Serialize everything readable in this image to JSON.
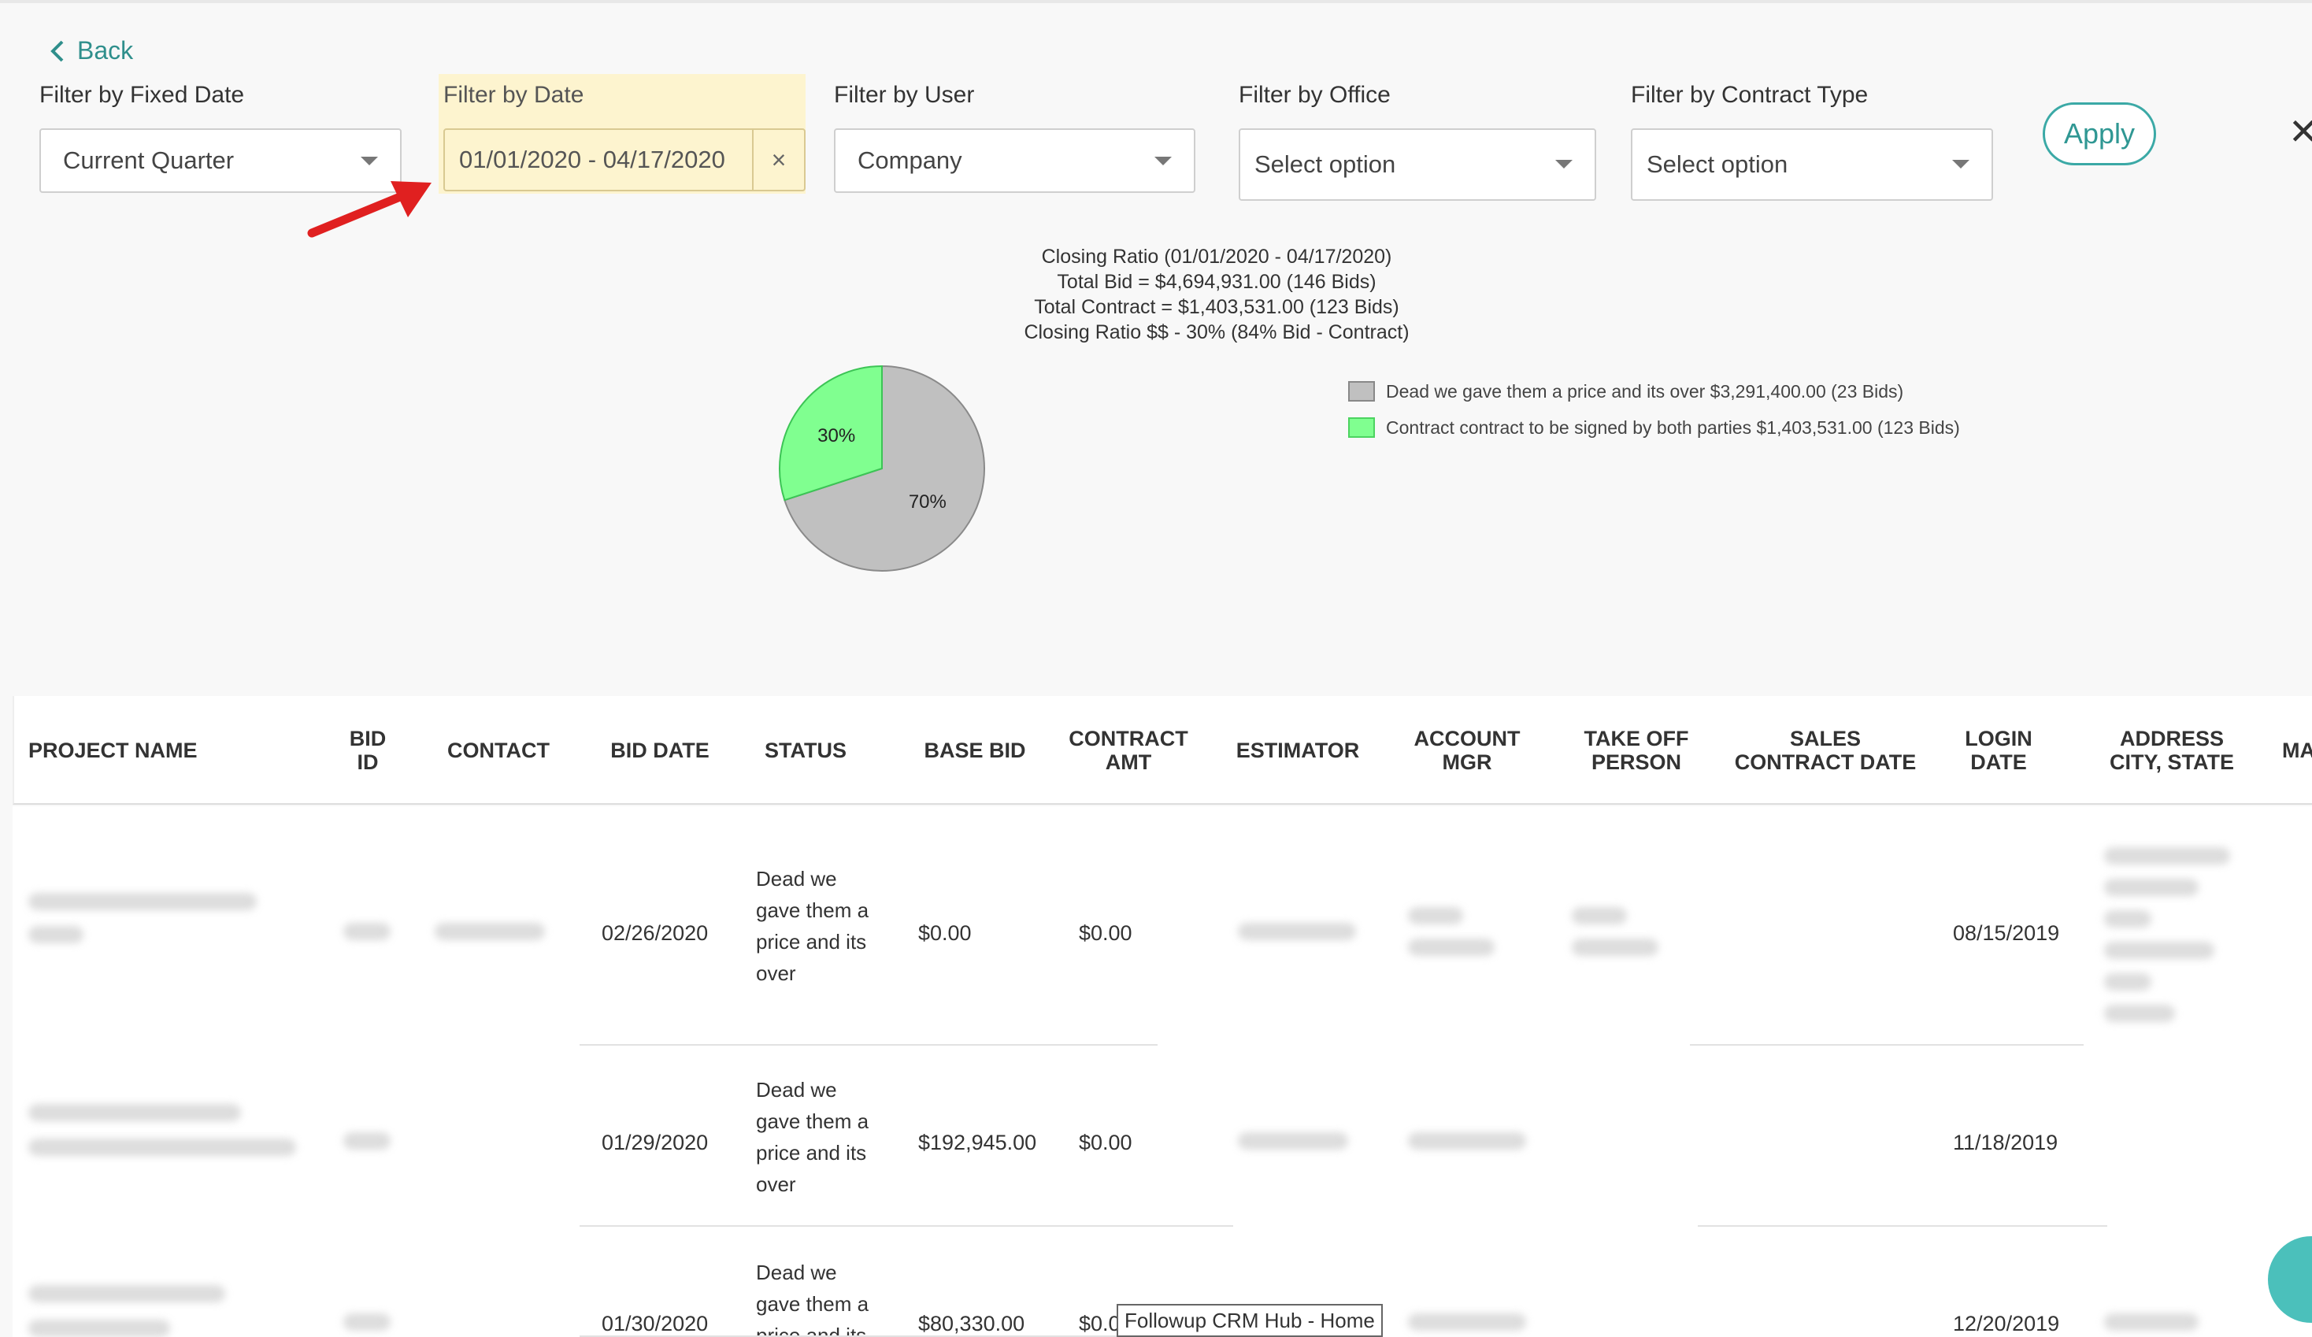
{
  "back_label": "Back",
  "filters": {
    "fixed_date": {
      "label": "Filter by Fixed Date",
      "value": "Current Quarter"
    },
    "date": {
      "label": "Filter by Date",
      "value": "01/01/2020 - 04/17/2020",
      "clear": "×"
    },
    "user": {
      "label": "Filter by User",
      "value": "Company"
    },
    "office": {
      "label": "Filter by Office",
      "value": "Select option"
    },
    "contract_type": {
      "label": "Filter by Contract Type",
      "value": "Select option"
    }
  },
  "apply_label": "Apply",
  "close_label": "✕",
  "colors": {
    "accent": "#3ba9a6",
    "dead": "#c0c0c0",
    "contract": "#80ff90",
    "highlight": "#fdf4cf",
    "arrow": "#e02020"
  },
  "chart_data": {
    "type": "pie",
    "title_lines": [
      "Closing Ratio (01/01/2020 - 04/17/2020)",
      "Total Bid = $4,694,931.00 (146 Bids)",
      "Total Contract = $1,403,531.00 (123 Bids)",
      "Closing Ratio $$ - 30% (84% Bid - Contract)"
    ],
    "slices": [
      {
        "label": "Dead we gave them a price and its over $3,291,400.00 (23 Bids)",
        "value": 70,
        "display": "70%",
        "color": "#c0c0c0"
      },
      {
        "label": "Contract contract to be signed by both parties $1,403,531.00 (123 Bids)",
        "value": 30,
        "display": "30%",
        "color": "#80ff90"
      }
    ],
    "legend_position": "right"
  },
  "table": {
    "columns": [
      "PROJECT NAME",
      "BID ID",
      "CONTACT",
      "BID DATE",
      "STATUS",
      "BASE BID",
      "CONTRACT AMT",
      "ESTIMATOR",
      "ACCOUNT MGR",
      "TAKE OFF PERSON",
      "SALES CONTRACT DATE",
      "LOGIN DATE",
      "ADDRESS CITY, STATE",
      "MA"
    ],
    "rows": [
      {
        "bid_date": "02/26/2020",
        "status": "Dead we gave them a price and its over",
        "base_bid": "$0.00",
        "contract_amt": "$0.00",
        "login_date": "08/15/2019"
      },
      {
        "bid_date": "01/29/2020",
        "status": "Dead we gave them a price and its over",
        "base_bid": "$192,945.00",
        "contract_amt": "$0.00",
        "login_date": "11/18/2019"
      },
      {
        "bid_date": "01/30/2020",
        "status": "Dead we gave them a price and its",
        "base_bid": "$80,330.00",
        "contract_amt": "$0.0",
        "login_date": "12/20/2019"
      }
    ]
  },
  "tooltip": "Followup CRM Hub - Home"
}
